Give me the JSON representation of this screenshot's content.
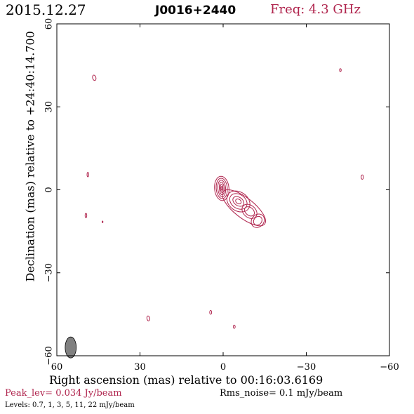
{
  "header": {
    "date": "2015.12.27",
    "source": "J0016+2440",
    "frequency": "Freq: 4.3 GHz"
  },
  "footer": {
    "peak": "Peak_lev=  0.034 Jy/beam",
    "rms": "Rms_noise=   0.1 mJy/beam",
    "levels": "Levels: 0.7,    1,    3,    5,   11,   22 mJy/beam"
  },
  "colors": {
    "contour": "#b0254e",
    "beam": "#808080",
    "frame": "#000000"
  },
  "chart_data": {
    "type": "contour",
    "title": "J0016+2440",
    "xlabel": "Right ascension (mas) relative to 00:16:03.6169",
    "ylabel": "Declination (mas) relative to +24:40:14.700",
    "xlim": [
      60,
      -60
    ],
    "ylim": [
      -60,
      60
    ],
    "xticks": [
      60,
      30,
      0,
      -30,
      -60
    ],
    "yticks": [
      60,
      30,
      0,
      -30,
      -60
    ],
    "xtick_labels": [
      "60",
      "30",
      "0",
      "−30",
      "−60"
    ],
    "ytick_labels": [
      "60",
      "30",
      "0",
      "−30",
      "−60"
    ],
    "levels_mJy_per_beam": [
      0.7,
      1,
      3,
      5,
      11,
      22
    ],
    "peak_Jy_per_beam": 0.034,
    "rms_noise_mJy_per_beam": 0.1,
    "beam": {
      "x": 55,
      "y": -57,
      "major": 3.8,
      "minor": 2.0,
      "pa_deg": 0
    },
    "components": [
      {
        "name": "core",
        "x": 0.5,
        "y": 0.5,
        "contours": [
          {
            "a": 2.6,
            "b": 4.4,
            "pa": 5
          },
          {
            "a": 2.0,
            "b": 3.7,
            "pa": 5
          },
          {
            "a": 1.4,
            "b": 3.0,
            "pa": 5
          },
          {
            "a": 0.9,
            "b": 2.3,
            "pa": 5
          },
          {
            "a": 0.5,
            "b": 1.5,
            "pa": 5
          },
          {
            "a": 0.25,
            "b": 0.7,
            "pa": 5
          }
        ]
      },
      {
        "name": "jet-knot-1",
        "x": -5.5,
        "y": -4.2,
        "contours": [
          {
            "a": 4.5,
            "b": 3.4,
            "pa": -35
          },
          {
            "a": 3.4,
            "b": 2.5,
            "pa": -35
          },
          {
            "a": 2.2,
            "b": 1.5,
            "pa": -35
          },
          {
            "a": 1.1,
            "b": 0.8,
            "pa": -35
          }
        ]
      },
      {
        "name": "jet-knot-2",
        "x": -9.5,
        "y": -7.8,
        "contours": [
          {
            "a": 3.0,
            "b": 2.2,
            "pa": -40
          },
          {
            "a": 2.0,
            "b": 1.4,
            "pa": -40
          }
        ]
      },
      {
        "name": "jet-knot-3",
        "x": -12.5,
        "y": -11.2,
        "contours": [
          {
            "a": 2.2,
            "b": 2.6,
            "pa": -40
          },
          {
            "a": 1.4,
            "b": 1.7,
            "pa": -40
          }
        ]
      },
      {
        "name": "jet-envelope",
        "x": -7.5,
        "y": -6.5,
        "contours": [
          {
            "a": 9.5,
            "b": 3.6,
            "pa": -38
          }
        ]
      },
      {
        "name": "spot-1",
        "x": 46.5,
        "y": 40.5,
        "contours": [
          {
            "a": 0.6,
            "b": 1.0,
            "pa": 15
          }
        ]
      },
      {
        "name": "spot-2",
        "x": 48.8,
        "y": 5.5,
        "contours": [
          {
            "a": 0.3,
            "b": 0.8,
            "pa": 0
          }
        ]
      },
      {
        "name": "spot-3",
        "x": 49.5,
        "y": -9.3,
        "contours": [
          {
            "a": 0.3,
            "b": 0.8,
            "pa": 0
          }
        ]
      },
      {
        "name": "spot-4",
        "x": 43.5,
        "y": -11.6,
        "contours": [
          {
            "a": 0.15,
            "b": 0.3,
            "pa": 0
          }
        ]
      },
      {
        "name": "spot-5",
        "x": 27.0,
        "y": -46.5,
        "contours": [
          {
            "a": 0.5,
            "b": 0.9,
            "pa": 10
          }
        ]
      },
      {
        "name": "spot-6",
        "x": 4.5,
        "y": -44.3,
        "contours": [
          {
            "a": 0.35,
            "b": 0.7,
            "pa": 0
          }
        ]
      },
      {
        "name": "spot-7",
        "x": -4.0,
        "y": -49.5,
        "contours": [
          {
            "a": 0.35,
            "b": 0.6,
            "pa": 0
          }
        ]
      },
      {
        "name": "spot-8",
        "x": -42.3,
        "y": 43.3,
        "contours": [
          {
            "a": 0.3,
            "b": 0.5,
            "pa": 0
          }
        ]
      },
      {
        "name": "spot-9",
        "x": -50.2,
        "y": 4.6,
        "contours": [
          {
            "a": 0.4,
            "b": 0.8,
            "pa": 0
          }
        ]
      }
    ]
  }
}
